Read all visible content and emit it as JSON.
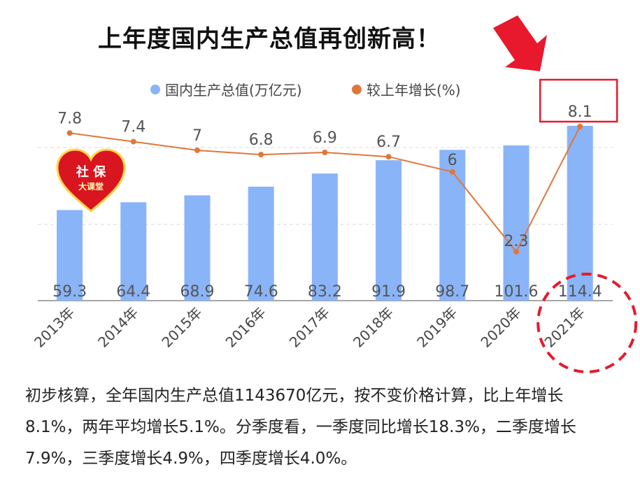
{
  "title": "上年度国内生产总值再创新高！",
  "badge": {
    "line1": "社 保",
    "line2": "大课堂"
  },
  "colors": {
    "bar": "#8ab4f8",
    "line": "#e0773a",
    "highlight": "#e8192c",
    "grid": "#d9d9d9"
  },
  "chart_data": {
    "type": "bar",
    "categories": [
      "2013年",
      "2014年",
      "2015年",
      "2016年",
      "2017年",
      "2018年",
      "2019年",
      "2020年",
      "2021年"
    ],
    "series": [
      {
        "name": "国内生产总值(万亿元)",
        "type": "bar",
        "values": [
          59.3,
          64.4,
          68.9,
          74.6,
          83.2,
          91.9,
          98.7,
          101.6,
          114.4
        ]
      },
      {
        "name": "较上年增长(%)",
        "type": "line",
        "values": [
          7.8,
          7.4,
          7,
          6.8,
          6.9,
          6.7,
          6,
          2.3,
          8.1
        ]
      }
    ],
    "legend_position": "top",
    "grid": true,
    "value_labels": [
      "59.3",
      "64.4",
      "68.9",
      "74.6",
      "83.2",
      "91.9",
      "98.7",
      "101.6",
      "114.4"
    ],
    "line_labels": [
      "7.8",
      "7.4",
      "7",
      "6.8",
      "6.9",
      "6.7",
      "6",
      "2.3",
      "8.1"
    ],
    "highlight": {
      "category": "2021年",
      "value": "8.1"
    }
  },
  "description": "初步核算，全年国内生产总值1143670亿元，按不变价格计算，比上年增长8.1%，两年平均增长5.1%。分季度看，一季度同比增长18.3%，二季度增长7.9%，三季度增长4.9%，四季度增长4.0%。"
}
